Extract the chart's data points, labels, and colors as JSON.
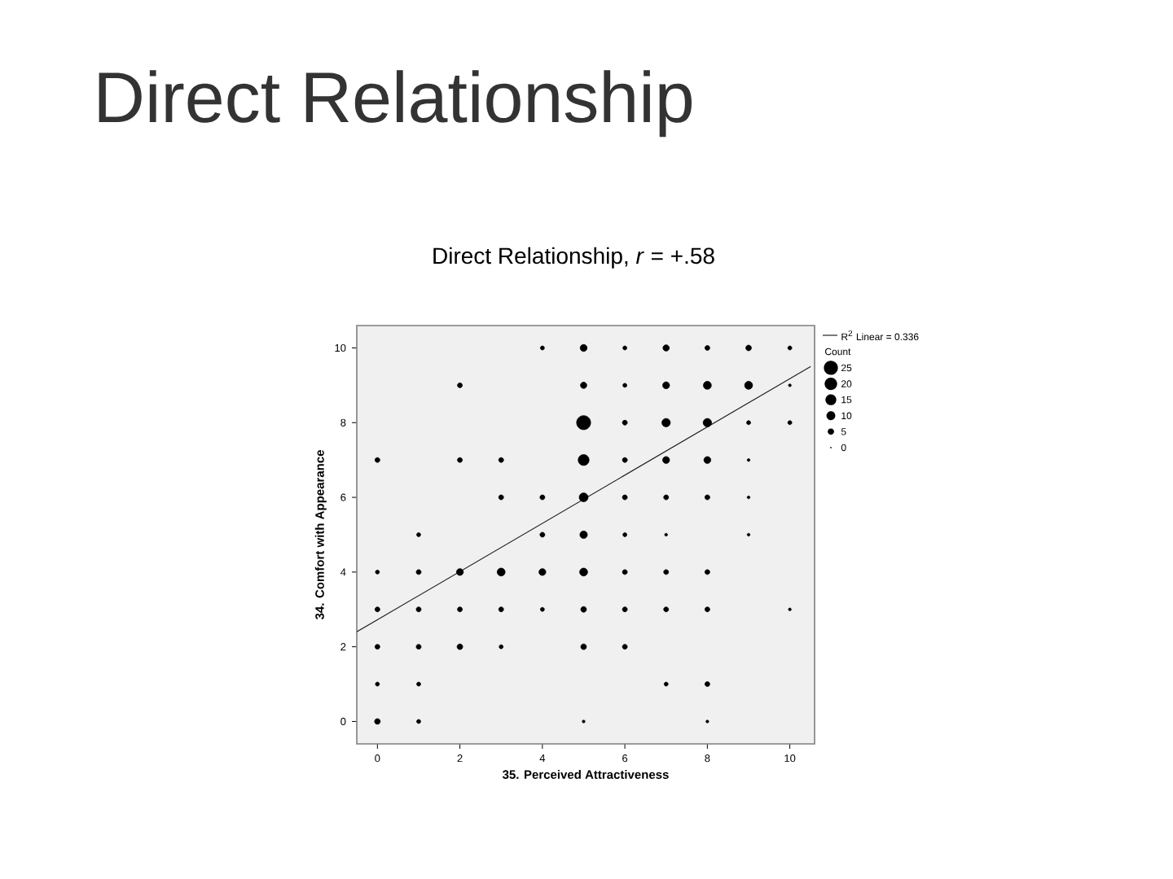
{
  "chart_data": {
    "type": "bubble",
    "title": "Direct Relationship",
    "subtitle": "Direct Relationship, *r* = +.58",
    "xlabel": "35. Perceived Attractiveness",
    "ylabel": "34. Comfort with Appearance",
    "legend_title": "Count",
    "series": [
      {
        "color": "#000000",
        "marker": "circle",
        "x": [
          4,
          5,
          6,
          7,
          8,
          9,
          10,
          2,
          5,
          6,
          7,
          8,
          9,
          10,
          5,
          6,
          7,
          8,
          9,
          10,
          0,
          2,
          3,
          5,
          6,
          7,
          8,
          9,
          3,
          4,
          5,
          6,
          7,
          8,
          9,
          1,
          4,
          5,
          6,
          7,
          9,
          0,
          1,
          2,
          3,
          4,
          5,
          6,
          7,
          8,
          0,
          1,
          2,
          3,
          4,
          5,
          6,
          7,
          8,
          10,
          0,
          1,
          2,
          3,
          5,
          6,
          0,
          1,
          7,
          8,
          0,
          1,
          5,
          8
        ],
        "values": [
          10,
          10,
          10,
          10,
          10,
          10,
          10,
          9,
          9,
          9,
          9,
          9,
          9,
          9,
          8,
          8,
          8,
          8,
          8,
          8,
          7,
          7,
          7,
          7,
          7,
          7,
          7,
          7,
          6,
          6,
          6,
          6,
          6,
          6,
          6,
          5,
          5,
          5,
          5,
          5,
          5,
          4,
          4,
          4,
          4,
          4,
          4,
          4,
          4,
          4,
          3,
          3,
          3,
          3,
          3,
          3,
          3,
          3,
          3,
          3,
          2,
          2,
          2,
          2,
          2,
          2,
          1,
          1,
          1,
          1,
          0,
          0,
          0,
          0
        ],
        "sizes": [
          2,
          6,
          2,
          5,
          3,
          4,
          2,
          3,
          5,
          2,
          6,
          8,
          8,
          1,
          25,
          3,
          9,
          9,
          2,
          2,
          3,
          3,
          3,
          15,
          3,
          6,
          6,
          1,
          3,
          3,
          10,
          3,
          3,
          3,
          1,
          2,
          3,
          7,
          2,
          1,
          1,
          2,
          3,
          6,
          8,
          6,
          8,
          3,
          3,
          3,
          3,
          3,
          3,
          3,
          2,
          4,
          3,
          3,
          3,
          1,
          3,
          3,
          4,
          2,
          4,
          3,
          2,
          2,
          2,
          3,
          4,
          2,
          1,
          1
        ]
      },
      {
        "type": "line",
        "name": "R$^{2}$ Linear = 0.336",
        "color": "#202020",
        "x": [
          -0.5,
          10.5
        ],
        "values": [
          2.4,
          9.5
        ]
      }
    ],
    "size_legend": [
      25,
      20,
      15,
      10,
      5,
      0
    ],
    "xlim": [
      -0.5,
      10.6
    ],
    "ylim": [
      -0.6,
      10.6
    ],
    "xticks": [
      0,
      2,
      4,
      6,
      8,
      10
    ],
    "yticks": [
      0,
      2,
      4,
      6,
      8,
      10
    ],
    "legend": "top right"
  }
}
